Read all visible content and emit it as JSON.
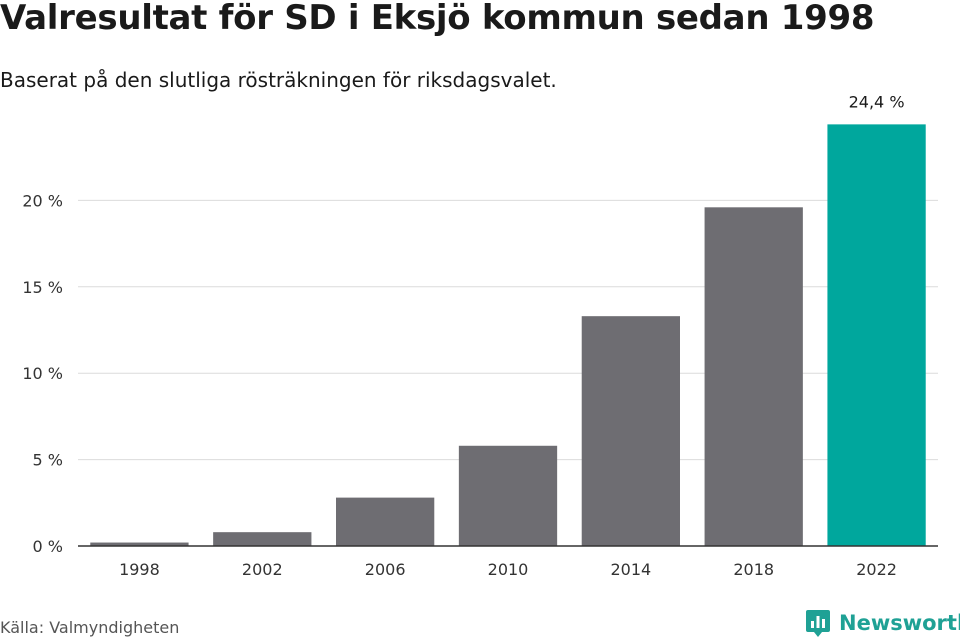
{
  "title": "Valresultat för SD i Eksjö kommun sedan 1998",
  "subtitle": "Baserat på den slutliga rösträkningen för riksdagsvalet.",
  "source": "Källa: Valmyndigheten",
  "brand": {
    "name": "Newsworthy",
    "icon": "newsworthy-logo-icon"
  },
  "colors": {
    "bar": "#6e6d72",
    "highlight": "#00a79d",
    "grid": "#dcdcdc",
    "axis": "#333333"
  },
  "chart_data": {
    "type": "bar",
    "categories": [
      "1998",
      "2002",
      "2006",
      "2010",
      "2014",
      "2018",
      "2022"
    ],
    "values": [
      0.2,
      0.8,
      2.8,
      5.8,
      13.3,
      19.6,
      24.4
    ],
    "highlight_index": 6,
    "data_labels": [
      {
        "index": 6,
        "text": "24,4 %"
      }
    ],
    "ylim": [
      0,
      25
    ],
    "yticks": [
      0,
      5,
      10,
      15,
      20
    ],
    "ytick_labels": [
      "0 %",
      "5 %",
      "10 %",
      "15 %",
      "20 %"
    ],
    "grid": true,
    "xlabel": "",
    "ylabel": ""
  }
}
